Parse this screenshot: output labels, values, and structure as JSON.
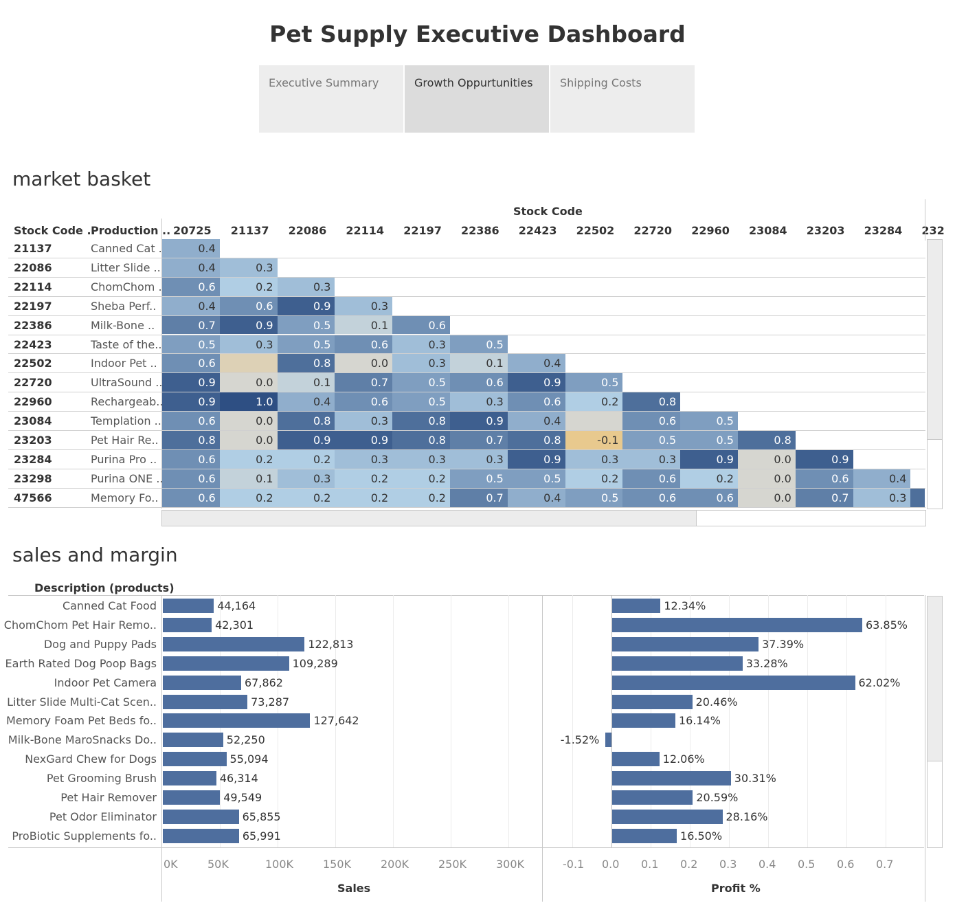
{
  "dashboard": {
    "title": "Pet Supply Executive Dashboard"
  },
  "tabs": [
    {
      "label": "Executive Summary",
      "active": false
    },
    {
      "label": "Growth Oppurtunities",
      "active": true
    },
    {
      "label": "Shipping Costs",
      "active": false
    }
  ],
  "market_basket": {
    "title": "market basket",
    "col_group_header": "Stock Code",
    "row_header_stock": "Stock Code ..",
    "row_header_prod": "Production ..",
    "columns": [
      "20725",
      "21137",
      "22086",
      "22114",
      "22197",
      "22386",
      "22423",
      "22502",
      "22720",
      "22960",
      "23084",
      "23203",
      "23284",
      "232"
    ],
    "rows": [
      {
        "code": "21137",
        "product": "Canned Cat ..",
        "values": [
          0.4
        ]
      },
      {
        "code": "22086",
        "product": "Litter Slide ..",
        "values": [
          0.4,
          0.3
        ]
      },
      {
        "code": "22114",
        "product": "ChomChom ..",
        "values": [
          0.6,
          0.2,
          0.3
        ]
      },
      {
        "code": "22197",
        "product": "Sheba Perf..",
        "values": [
          0.4,
          0.6,
          0.9,
          0.3
        ]
      },
      {
        "code": "22386",
        "product": "Milk-Bone ..",
        "values": [
          0.7,
          0.9,
          0.5,
          0.1,
          0.6
        ]
      },
      {
        "code": "22423",
        "product": "Taste of the..",
        "values": [
          0.5,
          0.3,
          0.5,
          0.6,
          0.3,
          0.5
        ]
      },
      {
        "code": "22502",
        "product": "Indoor Pet ..",
        "values": [
          0.6,
          null,
          0.8,
          0.0,
          0.3,
          0.1,
          0.4
        ]
      },
      {
        "code": "22720",
        "product": "UltraSound ..",
        "values": [
          0.9,
          0.0,
          0.1,
          0.7,
          0.5,
          0.6,
          0.9,
          0.5
        ]
      },
      {
        "code": "22960",
        "product": "Rechargeab..",
        "values": [
          0.9,
          1.0,
          0.4,
          0.6,
          0.5,
          0.3,
          0.6,
          0.2,
          0.8
        ]
      },
      {
        "code": "23084",
        "product": "Templation ..",
        "values": [
          0.6,
          0.0,
          0.8,
          0.3,
          0.8,
          0.9,
          0.4,
          null,
          0.6,
          0.5
        ]
      },
      {
        "code": "23203",
        "product": "Pet Hair Re..",
        "values": [
          0.8,
          0.0,
          0.9,
          0.9,
          0.8,
          0.7,
          0.8,
          -0.1,
          0.5,
          0.5,
          0.8
        ]
      },
      {
        "code": "23284",
        "product": "Purina Pro ..",
        "values": [
          0.6,
          0.2,
          0.2,
          0.3,
          0.3,
          0.3,
          0.9,
          0.3,
          0.3,
          0.9,
          0.0,
          0.9
        ]
      },
      {
        "code": "23298",
        "product": "Purina ONE ..",
        "values": [
          0.6,
          0.1,
          0.3,
          0.2,
          0.2,
          0.5,
          0.5,
          0.2,
          0.6,
          0.2,
          0.0,
          0.6,
          0.4
        ]
      },
      {
        "code": "47566",
        "product": "Memory Fo..",
        "values": [
          0.6,
          0.2,
          0.2,
          0.2,
          0.2,
          0.7,
          0.4,
          0.5,
          0.6,
          0.6,
          0.0,
          0.7,
          0.3,
          null
        ]
      }
    ]
  },
  "sales_margin": {
    "title": "sales and margin",
    "row_header": "Description (products)",
    "sales_axis_title": "Sales",
    "profit_axis_title": "Profit %",
    "sales_ticks": [
      "0K",
      "50K",
      "100K",
      "150K",
      "200K",
      "250K",
      "300K"
    ],
    "profit_ticks": [
      "-0.1",
      "0.0",
      "0.1",
      "0.2",
      "0.3",
      "0.4",
      "0.5",
      "0.6",
      "0.7"
    ],
    "products": [
      {
        "name": "Canned Cat Food",
        "sales": 44164,
        "sales_label": "44,164",
        "profit": 0.1234,
        "profit_label": "12.34%"
      },
      {
        "name": "ChomChom Pet Hair Remo..",
        "sales": 42301,
        "sales_label": "42,301",
        "profit": 0.6385,
        "profit_label": "63.85%"
      },
      {
        "name": "Dog and Puppy Pads",
        "sales": 122813,
        "sales_label": "122,813",
        "profit": 0.3739,
        "profit_label": "37.39%"
      },
      {
        "name": "Earth Rated Dog Poop Bags",
        "sales": 109289,
        "sales_label": "109,289",
        "profit": 0.3328,
        "profit_label": "33.28%"
      },
      {
        "name": "Indoor Pet Camera",
        "sales": 67862,
        "sales_label": "67,862",
        "profit": 0.6202,
        "profit_label": "62.02%"
      },
      {
        "name": "Litter Slide Multi-Cat Scen..",
        "sales": 73287,
        "sales_label": "73,287",
        "profit": 0.2046,
        "profit_label": "20.46%"
      },
      {
        "name": "Memory Foam Pet Beds fo..",
        "sales": 127642,
        "sales_label": "127,642",
        "profit": 0.1614,
        "profit_label": "16.14%"
      },
      {
        "name": "Milk-Bone MaroSnacks Do..",
        "sales": 52250,
        "sales_label": "52,250",
        "profit": -0.0152,
        "profit_label": "-1.52%"
      },
      {
        "name": "NexGard Chew for Dogs",
        "sales": 55094,
        "sales_label": "55,094",
        "profit": 0.1206,
        "profit_label": "12.06%"
      },
      {
        "name": "Pet Grooming Brush",
        "sales": 46314,
        "sales_label": "46,314",
        "profit": 0.3031,
        "profit_label": "30.31%"
      },
      {
        "name": "Pet Hair Remover",
        "sales": 49549,
        "sales_label": "49,549",
        "profit": 0.2059,
        "profit_label": "20.59%"
      },
      {
        "name": "Pet Odor Eliminator",
        "sales": 65855,
        "sales_label": "65,855",
        "profit": 0.2816,
        "profit_label": "28.16%"
      },
      {
        "name": "ProBiotic Supplements fo..",
        "sales": 65991,
        "sales_label": "65,991",
        "profit": 0.165,
        "profit_label": "16.50%"
      }
    ]
  },
  "colors": {
    "bar": "#4e6e9e",
    "heat_low": "#e8c98e",
    "heat_mid": "#d6d6d0",
    "heat_high": "#2e4f83"
  }
}
